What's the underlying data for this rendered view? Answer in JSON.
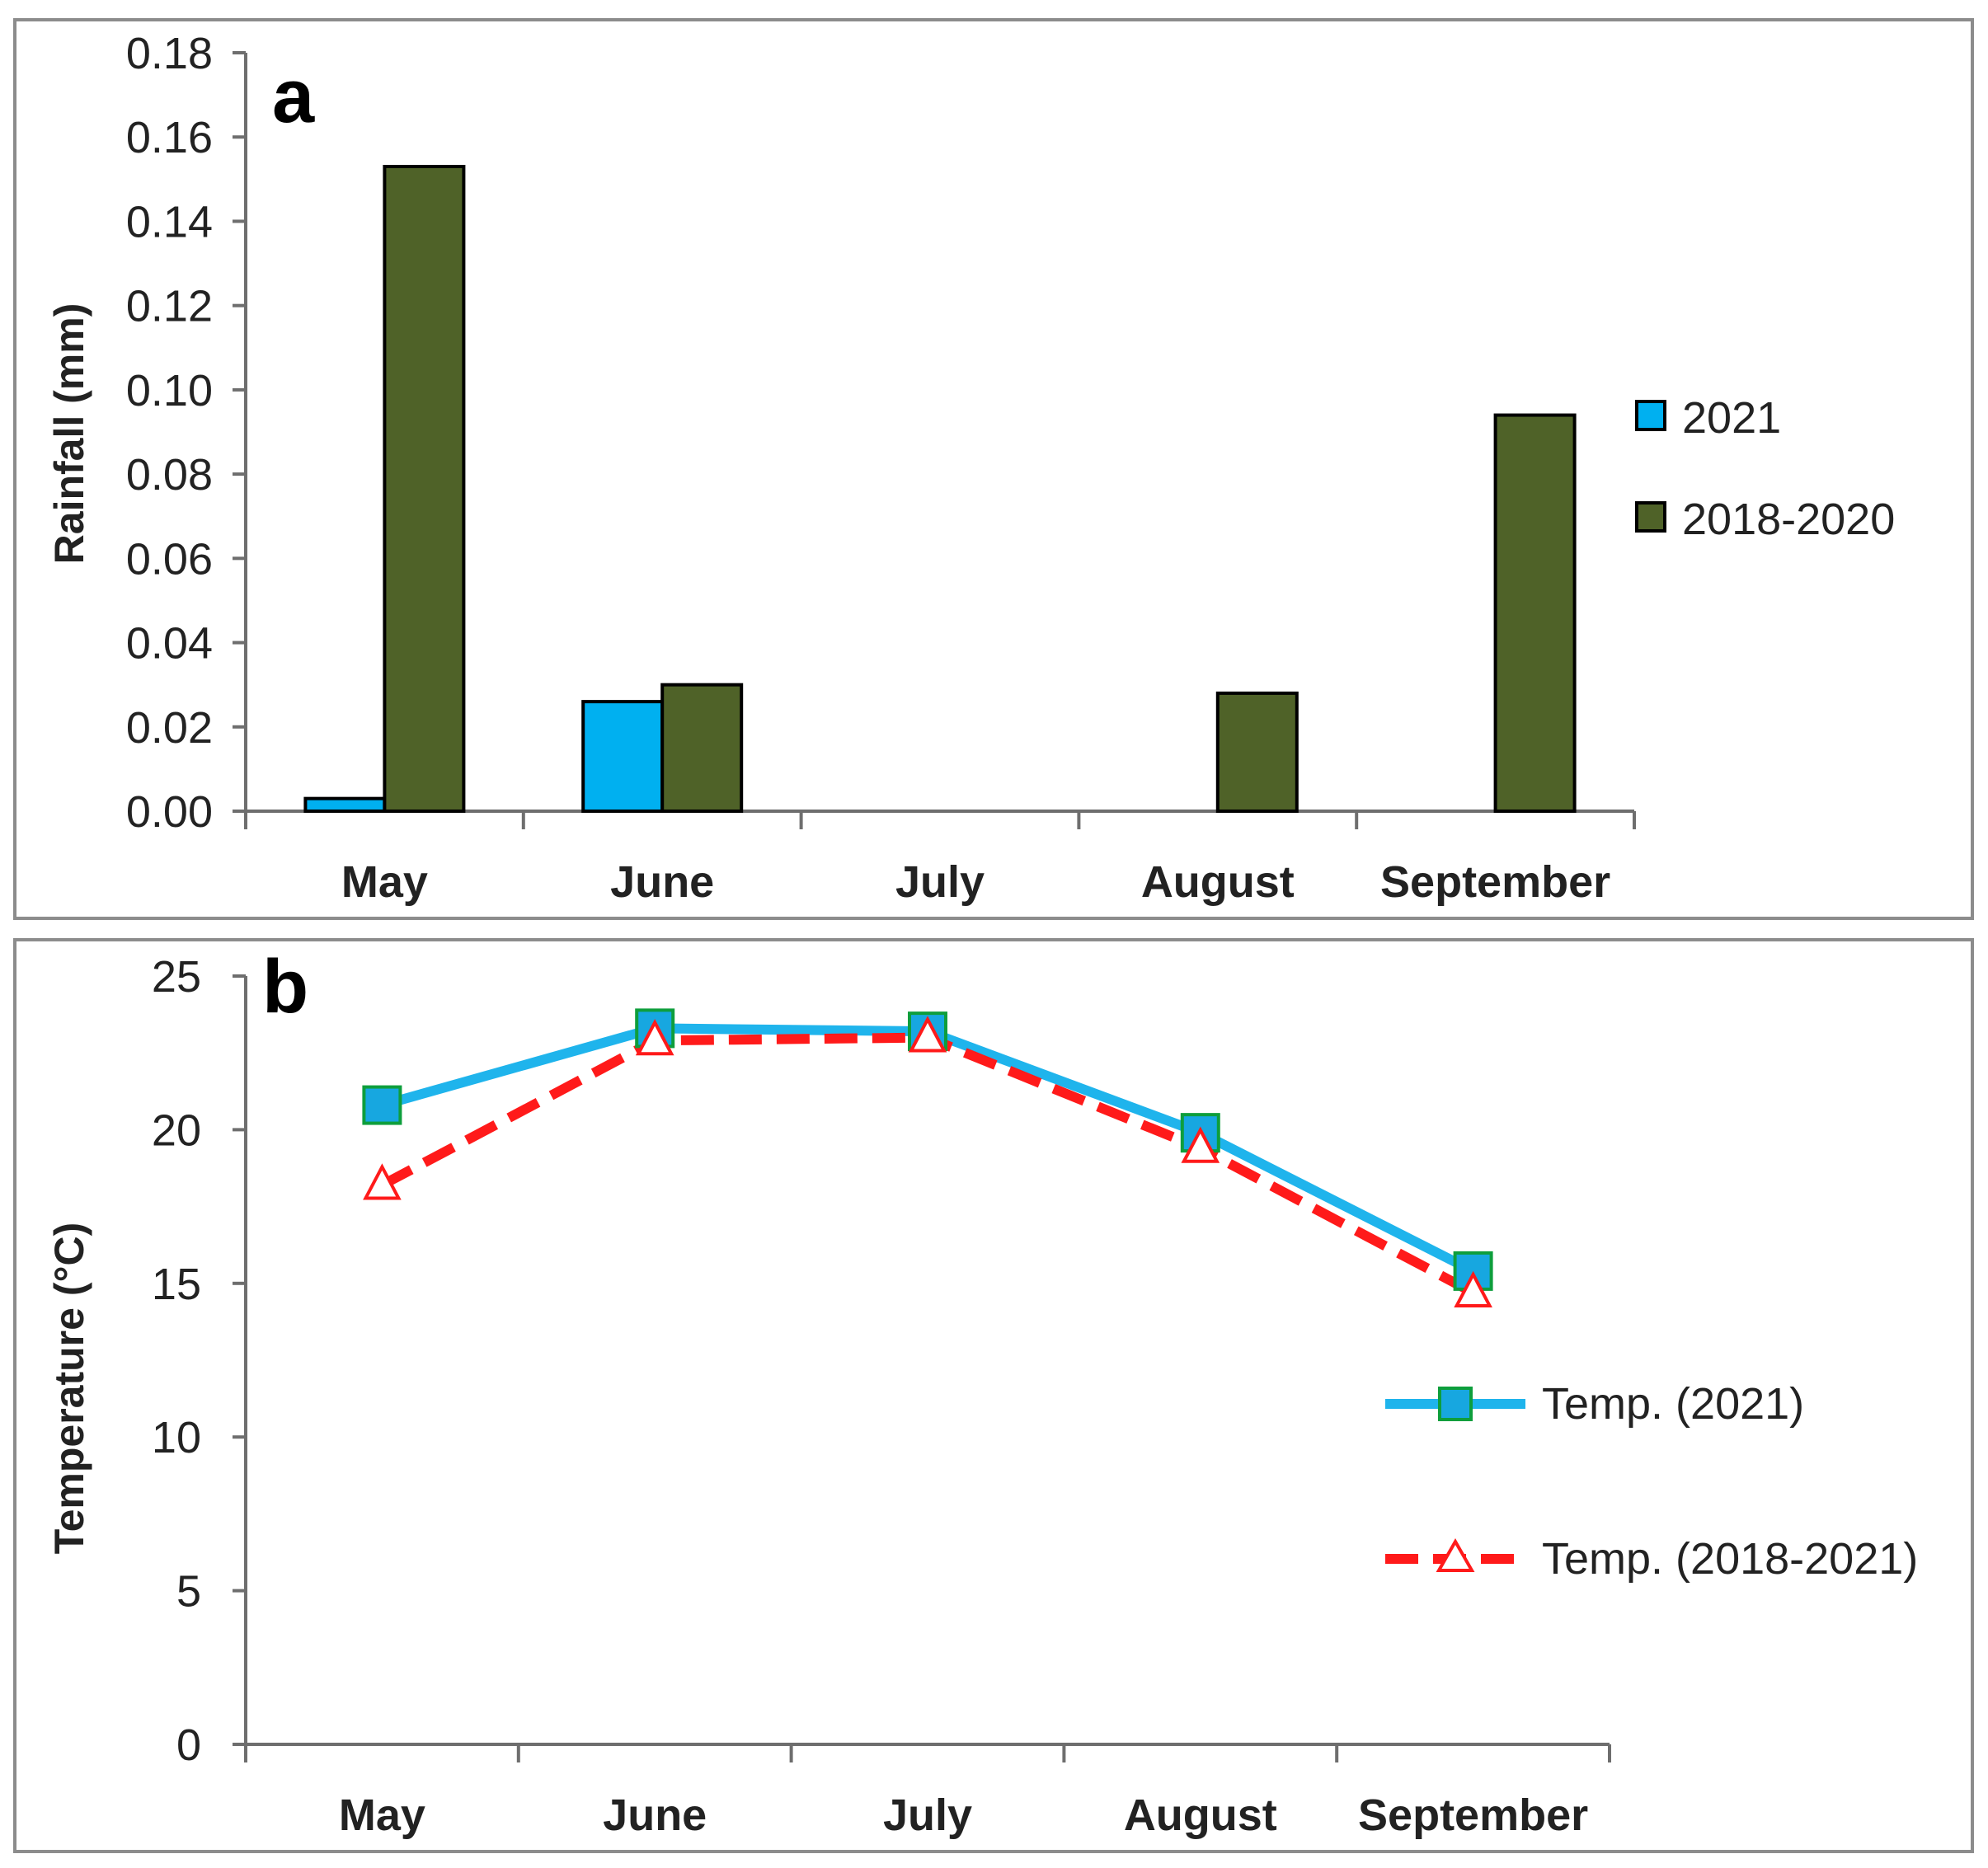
{
  "colors": {
    "rain_2021": "#00b0f0",
    "rain_2018_2020": "#4f6228",
    "temp_2021_line": "#1fb4ec",
    "temp_2021_marker": "#17a7e0",
    "temp_2021_marker_edge": "#0e9e3c",
    "temp_avg_line": "#ff1a1a",
    "frame": "#8c8c8c",
    "axis": "#6e6e6e"
  },
  "chart_data": [
    {
      "id": "a",
      "panel_label": "a",
      "type": "bar",
      "title": "",
      "xlabel": "",
      "ylabel": "Rainfall (mm)",
      "categories": [
        "May",
        "June",
        "July",
        "August",
        "September"
      ],
      "series": [
        {
          "name": "2021",
          "values": [
            0.003,
            0.026,
            0.0,
            0.0,
            0.0
          ]
        },
        {
          "name": "2018-2020",
          "values": [
            0.153,
            0.03,
            0.0,
            0.028,
            0.094
          ]
        }
      ],
      "ylim": [
        0,
        0.18
      ],
      "yticks": [
        "0.00",
        "0.02",
        "0.04",
        "0.06",
        "0.08",
        "0.10",
        "0.12",
        "0.14",
        "0.16",
        "0.18"
      ],
      "grid": false,
      "legend_position": "right"
    },
    {
      "id": "b",
      "panel_label": "b",
      "type": "line",
      "title": "",
      "xlabel": "",
      "ylabel": "Temperature (°C)",
      "categories": [
        "May",
        "June",
        "July",
        "August",
        "September"
      ],
      "series": [
        {
          "name": "Temp. (2021)",
          "values": [
            20.8,
            23.3,
            23.2,
            19.9,
            15.4
          ],
          "marker": "square",
          "style": "solid"
        },
        {
          "name": "Temp. (2018-2021)",
          "values": [
            18.2,
            22.9,
            23.0,
            19.4,
            14.7
          ],
          "marker": "triangle",
          "style": "dashed"
        }
      ],
      "ylim": [
        0,
        25
      ],
      "yticks": [
        "0",
        "5",
        "10",
        "15",
        "20",
        "25"
      ],
      "grid": false,
      "legend_position": "right"
    }
  ]
}
